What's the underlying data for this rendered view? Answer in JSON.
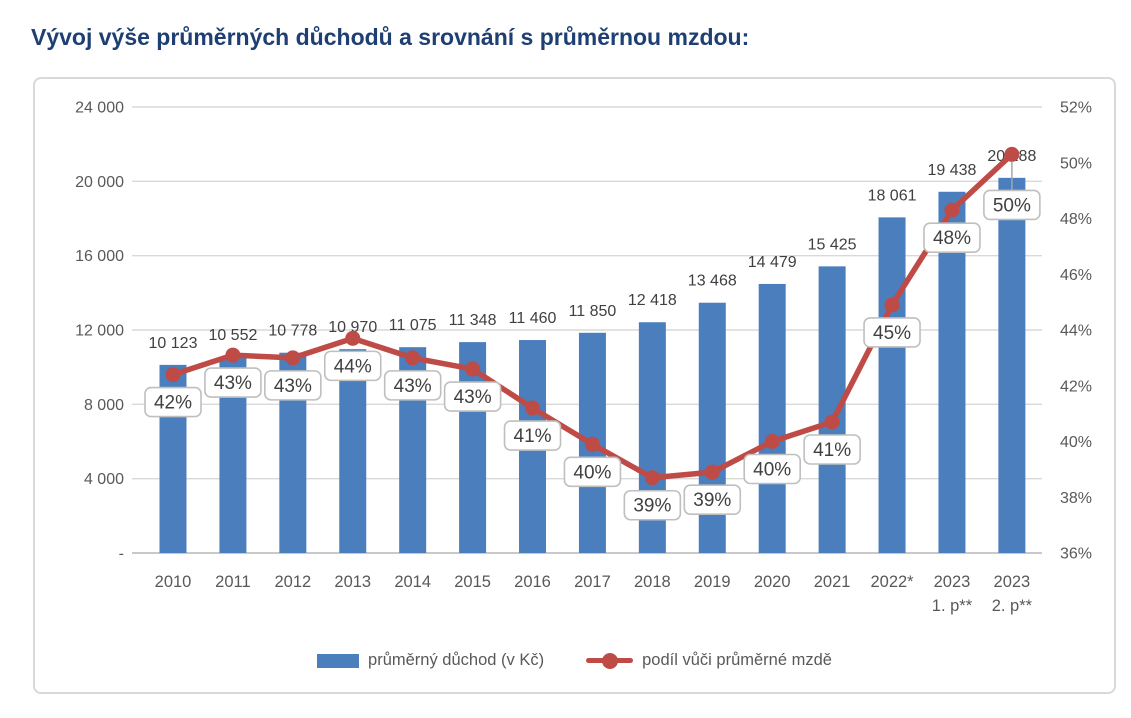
{
  "page": {
    "title": "Vývoj výše průměrných důchodů a srovnání s průměrnou mzdou:"
  },
  "chart_data": {
    "type": "bar+line combo",
    "title": "Vývoj výše průměrných důchodů a srovnání s průměrnou mzdou:",
    "grid": true,
    "legend_position": "bottom",
    "categories": [
      "2010",
      "2011",
      "2012",
      "2013",
      "2014",
      "2015",
      "2016",
      "2017",
      "2018",
      "2019",
      "2020",
      "2021",
      "2022*",
      "2023",
      "2023"
    ],
    "category_sublabels": [
      "",
      "",
      "",
      "",
      "",
      "",
      "",
      "",
      "",
      "",
      "",
      "",
      "",
      "1. p**",
      "2. p**"
    ],
    "bar_series": {
      "name": "průměrný důchod (v Kč)",
      "axis": "left",
      "values": [
        10123,
        10552,
        10778,
        10970,
        11075,
        11348,
        11460,
        11850,
        12418,
        13468,
        14479,
        15425,
        18061,
        19438,
        20188
      ],
      "labels": [
        "10 123",
        "10 552",
        "10 778",
        "10 970",
        "11 075",
        "11 348",
        "11 460",
        "11 850",
        "12 418",
        "13 468",
        "14 479",
        "15 425",
        "18 061",
        "19 438",
        "20 188"
      ],
      "color": "#4b7ebd"
    },
    "line_series": {
      "name": "podíl vůči průměrné mzdě",
      "axis": "right",
      "values_pct": [
        42,
        43,
        43,
        44,
        43,
        43,
        41,
        40,
        39,
        39,
        40,
        41,
        45,
        48,
        50
      ],
      "values_pct_estimated": [
        42.4,
        43.1,
        43.0,
        43.7,
        43.0,
        42.6,
        41.2,
        39.9,
        38.7,
        38.9,
        40.0,
        40.7,
        44.9,
        48.3,
        50.3
      ],
      "labels": [
        "42%",
        "43%",
        "43%",
        "44%",
        "43%",
        "43%",
        "41%",
        "40%",
        "39%",
        "39%",
        "40%",
        "41%",
        "45%",
        "48%",
        "50%"
      ],
      "color": "#bf4b47"
    },
    "left_axis": {
      "min": 0,
      "max": 24000,
      "step": 4000,
      "ticks": [
        "24 000",
        "20 000",
        "16 000",
        "12 000",
        "8 000",
        "4 000",
        "-"
      ]
    },
    "right_axis": {
      "min": 36,
      "max": 52,
      "step": 2,
      "ticks": [
        "52%",
        "50%",
        "48%",
        "46%",
        "44%",
        "42%",
        "40%",
        "38%",
        "36%"
      ]
    }
  },
  "colors": {
    "title": "#1e3f73",
    "axis_text": "#595959",
    "grid": "#d9d9d9",
    "axis_line": "#c9c9c9",
    "bar": "#4b7ebd",
    "line": "#bf4b47",
    "label_text": "#404040",
    "callout_border": "#bfbfbf",
    "callout_bg": "#ffffff",
    "frame_border": "#d9d9d9",
    "leader": "#a6a6a6",
    "page_bg": "#ffffff"
  }
}
